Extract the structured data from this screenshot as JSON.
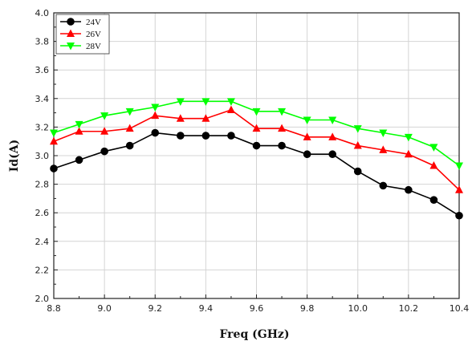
{
  "chart_data": {
    "type": "line",
    "title": "",
    "xlabel": "Freq (GHz)",
    "ylabel": "Id(A)",
    "xlim": [
      8.8,
      10.4
    ],
    "ylim": [
      2.0,
      4.0
    ],
    "xticks": [
      8.8,
      9.0,
      9.2,
      9.4,
      9.6,
      9.8,
      10.0,
      10.2,
      10.4
    ],
    "xtick_labels": [
      "8.8",
      "9.0",
      "9.2",
      "9.4",
      "9.6",
      "9.8",
      "10.0",
      "10.2",
      "10.4"
    ],
    "yticks": [
      2.0,
      2.2,
      2.4,
      2.6,
      2.8,
      3.0,
      3.2,
      3.4,
      3.6,
      3.8,
      4.0
    ],
    "ytick_labels": [
      "2.0",
      "2.2",
      "2.4",
      "2.6",
      "2.8",
      "3.0",
      "3.2",
      "3.4",
      "3.6",
      "3.8",
      "4.0"
    ],
    "grid": true,
    "legend_position": "top-left",
    "x": [
      8.8,
      8.9,
      9.0,
      9.1,
      9.2,
      9.3,
      9.4,
      9.5,
      9.6,
      9.7,
      9.8,
      9.9,
      10.0,
      10.1,
      10.2,
      10.3,
      10.4
    ],
    "series": [
      {
        "name": "24V",
        "color": "#000000",
        "marker": "circle",
        "values": [
          2.91,
          2.97,
          3.03,
          3.07,
          3.16,
          3.14,
          3.14,
          3.14,
          3.07,
          3.07,
          3.01,
          3.01,
          2.89,
          2.79,
          2.76,
          2.69,
          2.58
        ]
      },
      {
        "name": "26V",
        "color": "#ff0000",
        "marker": "triangle-up",
        "values": [
          3.1,
          3.17,
          3.17,
          3.19,
          3.28,
          3.26,
          3.26,
          3.32,
          3.19,
          3.19,
          3.13,
          3.13,
          3.07,
          3.04,
          3.01,
          2.93,
          2.76
        ]
      },
      {
        "name": "28V",
        "color": "#00ff00",
        "marker": "triangle-down",
        "values": [
          3.16,
          3.22,
          3.28,
          3.31,
          3.34,
          3.38,
          3.38,
          3.38,
          3.31,
          3.31,
          3.25,
          3.25,
          3.19,
          3.16,
          3.13,
          3.06,
          2.93
        ]
      }
    ]
  }
}
